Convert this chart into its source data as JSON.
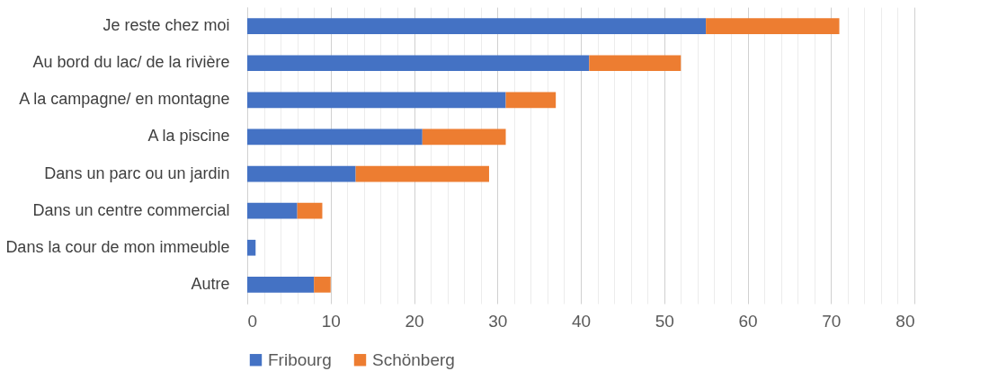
{
  "chart_data": {
    "type": "bar",
    "orientation": "horizontal",
    "stacked": true,
    "categories": [
      "Je reste chez moi ",
      "Au bord du lac/ de la rivière",
      "A la campagne/ en montagne",
      "A la piscine",
      "Dans un parc ou un jardin",
      "Dans un centre commercial",
      "Dans la cour de mon immeuble ",
      "Autre"
    ],
    "series": [
      {
        "name": "Fribourg",
        "color": "#4472c4",
        "values": [
          55,
          41,
          31,
          21,
          13,
          6,
          1,
          8
        ]
      },
      {
        "name": "Schönberg",
        "color": "#ed7d31",
        "values": [
          16,
          11,
          6,
          10,
          16,
          3,
          0,
          2
        ]
      }
    ],
    "xlim": [
      0,
      80
    ],
    "xticks": [
      0,
      {
        "value": 2,
        "label": null
      },
      {
        "value": 4,
        "label": null
      },
      {
        "value": 6,
        "label": null
      },
      {
        "value": 8,
        "label": null
      },
      10,
      {
        "value": 12,
        "label": null
      },
      {
        "value": 14,
        "label": null
      },
      {
        "value": 16,
        "label": null
      },
      {
        "value": 18,
        "label": null
      },
      20,
      {
        "value": 22,
        "label": null
      },
      {
        "value": 24,
        "label": null
      },
      {
        "value": 26,
        "label": null
      },
      {
        "value": 28,
        "label": null
      },
      30,
      {
        "value": 32,
        "label": null
      },
      {
        "value": 34,
        "label": null
      },
      {
        "value": 36,
        "label": null
      },
      {
        "value": 38,
        "label": null
      },
      40,
      {
        "value": 42,
        "label": null
      },
      {
        "value": 44,
        "label": null
      },
      {
        "value": 46,
        "label": null
      },
      {
        "value": 48,
        "label": null
      },
      50,
      {
        "value": 52,
        "label": null
      },
      {
        "value": 54,
        "label": null
      },
      {
        "value": 56,
        "label": null
      },
      {
        "value": 58,
        "label": null
      },
      60,
      {
        "value": 62,
        "label": null
      },
      {
        "value": 64,
        "label": null
      },
      {
        "value": 66,
        "label": null
      },
      {
        "value": 68,
        "label": null
      },
      70,
      {
        "value": 72,
        "label": null
      },
      {
        "value": 74,
        "label": null
      },
      {
        "value": 76,
        "label": null
      },
      {
        "value": 78,
        "label": null
      },
      80
    ],
    "grid": "x",
    "legend": "bottom"
  }
}
